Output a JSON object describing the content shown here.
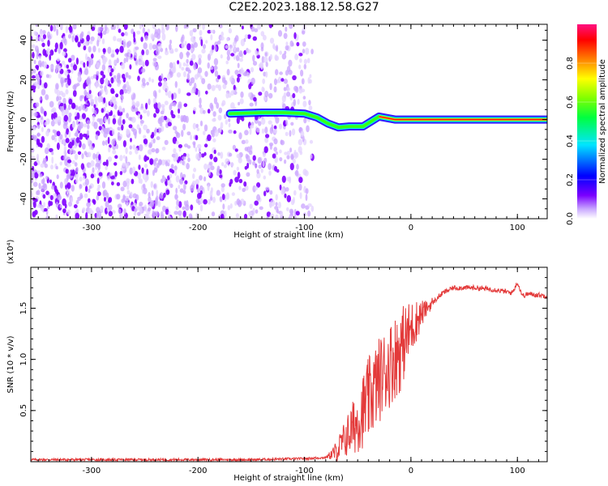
{
  "title": "C2E2.2023.188.12.58.G27",
  "colors": {
    "spec_low": "#8000ff",
    "snr_line": "#e33a3a",
    "axis": "#000000"
  },
  "chart_data": [
    {
      "type": "heatmap",
      "xlabel": "Height of straight line (km)",
      "ylabel": "Frequency (Hz)",
      "xlim": [
        -357,
        128
      ],
      "ylim": [
        -50,
        48
      ],
      "xticks": [
        -300,
        -200,
        -100,
        0,
        100
      ],
      "yticks": [
        -40,
        -20,
        0,
        20,
        40
      ],
      "noise_region_x": [
        -357,
        -92
      ],
      "signal_track": [
        {
          "x": -170,
          "y": 3
        },
        {
          "x": -140,
          "y": 3.5
        },
        {
          "x": -120,
          "y": 3.5
        },
        {
          "x": -100,
          "y": 3
        },
        {
          "x": -88,
          "y": 1
        },
        {
          "x": -78,
          "y": -2
        },
        {
          "x": -68,
          "y": -4
        },
        {
          "x": -58,
          "y": -3.5
        },
        {
          "x": -45,
          "y": -3.5
        },
        {
          "x": -30,
          "y": 1.5
        },
        {
          "x": -15,
          "y": 0
        },
        {
          "x": 0,
          "y": 0
        },
        {
          "x": 128,
          "y": 0
        }
      ],
      "colorbar": {
        "label": "Normalized spectral amplitude",
        "range": [
          0.0,
          1.0
        ],
        "ticks": [
          "0.0",
          "0.2",
          "0.4",
          "0.6",
          "0.8"
        ]
      }
    },
    {
      "type": "line",
      "xlabel": "Height of straight line (km)",
      "ylabel": "SNR (10 * v/v)",
      "yscale_note": "(x10⁴)",
      "xlim": [
        -357,
        128
      ],
      "ylim": [
        0,
        1.9
      ],
      "xticks": [
        -300,
        -200,
        -100,
        0,
        100
      ],
      "yticks": [
        "0.5",
        "1.0",
        "1.5"
      ],
      "series": [
        {
          "x": [
            -357,
            -300,
            -250,
            -200,
            -150,
            -100,
            -80,
            -70,
            -60,
            -50,
            -40,
            -30,
            -20,
            -10,
            0,
            10,
            20,
            30,
            40,
            60,
            80,
            95,
            100,
            105,
            110,
            128
          ],
          "y": [
            0.02,
            0.02,
            0.02,
            0.02,
            0.02,
            0.03,
            0.04,
            0.1,
            0.25,
            0.4,
            0.6,
            0.8,
            0.95,
            1.1,
            1.3,
            1.45,
            1.55,
            1.65,
            1.7,
            1.7,
            1.68,
            1.65,
            1.75,
            1.62,
            1.64,
            1.62
          ]
        }
      ]
    }
  ]
}
